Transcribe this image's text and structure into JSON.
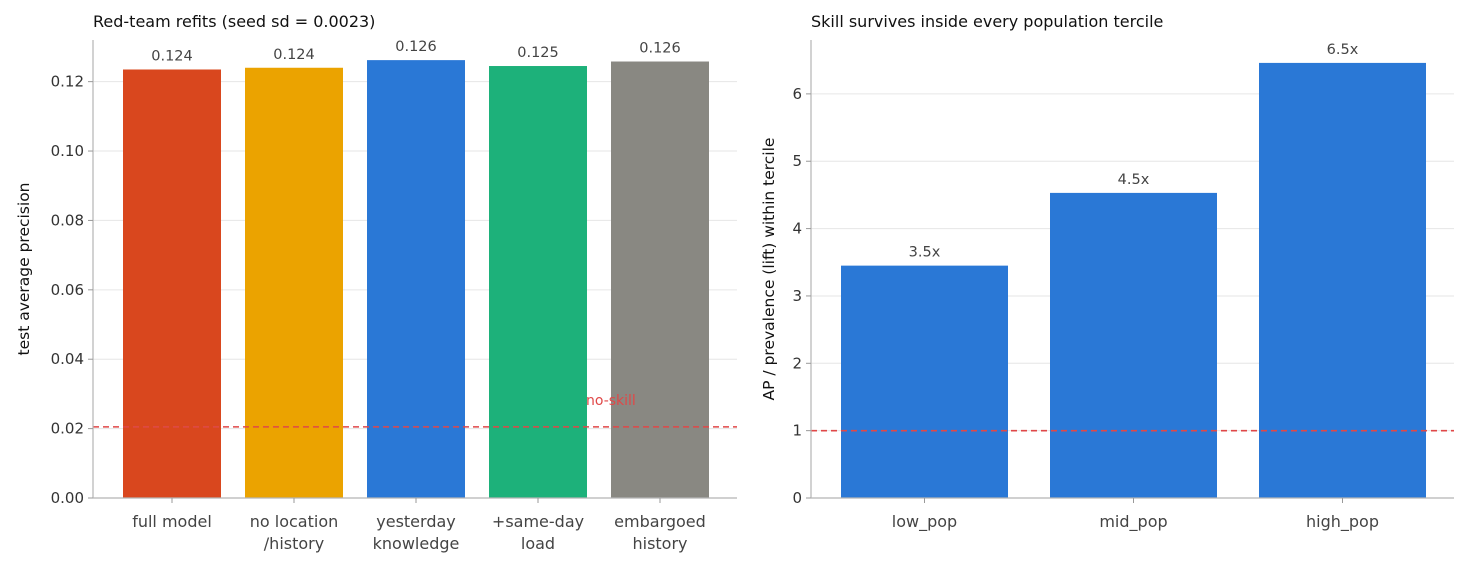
{
  "chart_data": [
    {
      "type": "bar",
      "title": "Red-team refits (seed sd = 0.0023)",
      "xlabel": "",
      "ylabel": "test average precision",
      "categories": [
        "full model",
        "no location\n/history",
        "yesterday\nknowledge",
        "+same-day\nload",
        "embargoed\nhistory"
      ],
      "values": [
        0.1235,
        0.124,
        0.1262,
        0.1245,
        0.1258
      ],
      "value_labels": [
        "0.124",
        "0.124",
        "0.126",
        "0.125",
        "0.126"
      ],
      "colors": [
        "#d9471e",
        "#eba300",
        "#2a78d6",
        "#1db17a",
        "#898882"
      ],
      "ylim": [
        0,
        0.132
      ],
      "yticks": [
        0.0,
        0.02,
        0.04,
        0.06,
        0.08,
        0.1,
        0.12
      ],
      "ytick_labels": [
        "0.00",
        "0.02",
        "0.04",
        "0.06",
        "0.08",
        "0.10",
        "0.12"
      ],
      "reference_line": {
        "value": 0.0205,
        "label": "no-skill",
        "color": "#e04848"
      },
      "grid": "horizontal"
    },
    {
      "type": "bar",
      "title": "Skill survives inside every population tercile",
      "xlabel": "",
      "ylabel": "AP / prevalence (lift) within tercile",
      "categories": [
        "low_pop",
        "mid_pop",
        "high_pop"
      ],
      "values": [
        3.45,
        4.53,
        6.46
      ],
      "value_labels": [
        "3.5x",
        "4.5x",
        "6.5x"
      ],
      "colors": [
        "#2a78d6",
        "#2a78d6",
        "#2a78d6"
      ],
      "ylim": [
        0,
        6.8
      ],
      "yticks": [
        0,
        1,
        2,
        3,
        4,
        5,
        6
      ],
      "ytick_labels": [
        "0",
        "1",
        "2",
        "3",
        "4",
        "5",
        "6"
      ],
      "reference_line": {
        "value": 1.0,
        "label": "",
        "color": "#e04848"
      },
      "grid": "horizontal"
    }
  ]
}
